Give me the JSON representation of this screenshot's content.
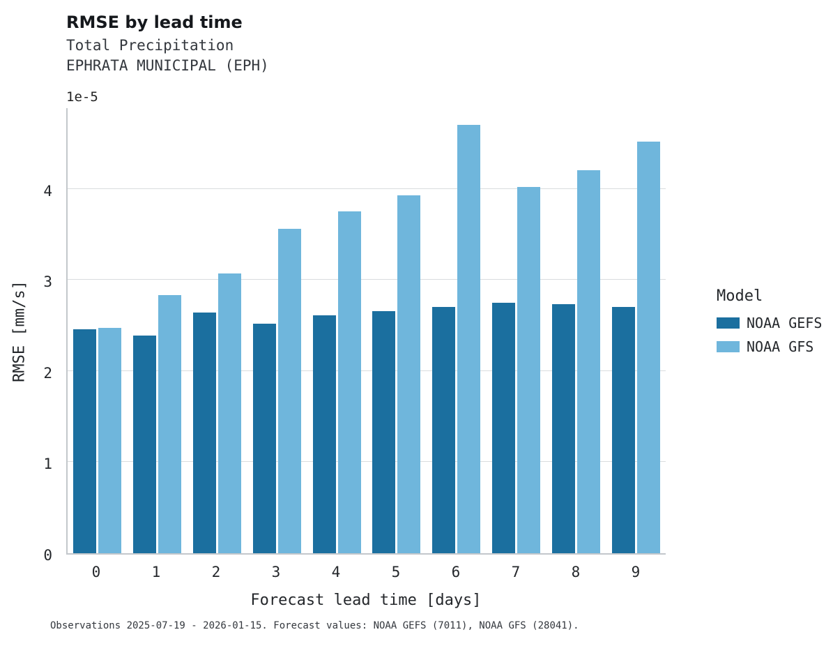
{
  "chart_data": {
    "type": "bar",
    "title": "RMSE by lead time",
    "subtitle1": "Total Precipitation",
    "subtitle2": "EPHRATA MUNICIPAL (EPH)",
    "offset_label": "1e-5",
    "xlabel": "Forecast lead time [days]",
    "ylabel": "RMSE [mm/s]",
    "categories": [
      "0",
      "1",
      "2",
      "3",
      "4",
      "5",
      "6",
      "7",
      "8",
      "9"
    ],
    "series": [
      {
        "name": "NOAA GEFS",
        "color": "#1b6f9f",
        "values": [
          2.46,
          2.39,
          2.64,
          2.52,
          2.61,
          2.66,
          2.7,
          2.75,
          2.73,
          2.7
        ]
      },
      {
        "name": "NOAA GFS",
        "color": "#6fb6dc",
        "values": [
          2.47,
          2.83,
          3.07,
          3.56,
          3.75,
          3.93,
          4.7,
          4.02,
          4.2,
          4.52
        ]
      }
    ],
    "yticks": [
      0,
      1,
      2,
      3,
      4
    ],
    "ylim": [
      0,
      4.9
    ],
    "grid": "horizontal",
    "legend_title": "Model",
    "legend_position": "right",
    "footnote": "Observations 2025-07-19 - 2026-01-15. Forecast values: NOAA GEFS (7011), NOAA GFS (28041)."
  }
}
